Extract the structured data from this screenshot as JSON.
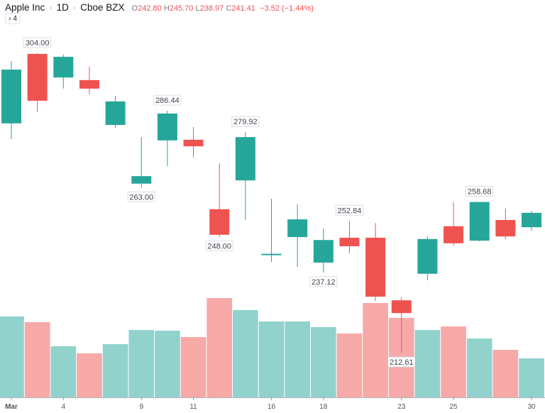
{
  "legend": {
    "symbol": "Apple Inc",
    "interval": "1D",
    "exchange": "Cboe BZX",
    "separator": "·",
    "open_key": "O",
    "open": "242.80",
    "high_key": "H",
    "high": "245.70",
    "low_key": "L",
    "low": "238.97",
    "close_key": "C",
    "close": "241.41",
    "change": "−3.52 (−1.44%)",
    "indicators_toggle_icon": "chevron-right-icon",
    "indicators_count": "4"
  },
  "colors": {
    "up": "#26a69a",
    "down": "#ef5350",
    "volume_up": "#92d2cc",
    "volume_down": "#f7a9a7"
  },
  "chart_data": {
    "type": "candlestick",
    "x_tick_labels": [
      {
        "index": 0,
        "label": "Mar"
      },
      {
        "index": 2,
        "label": "4"
      },
      {
        "index": 5,
        "label": "9"
      },
      {
        "index": 7,
        "label": "11"
      },
      {
        "index": 10,
        "label": "16"
      },
      {
        "index": 12,
        "label": "18"
      },
      {
        "index": 15,
        "label": "23"
      },
      {
        "index": 17,
        "label": "25"
      },
      {
        "index": 20,
        "label": "30"
      }
    ],
    "candles": [
      {
        "o": 282.6,
        "h": 301.6,
        "l": 277.8,
        "c": 299.0,
        "v": 114
      },
      {
        "o": 303.8,
        "h": 304.0,
        "l": 286.0,
        "c": 289.5,
        "v": 106
      },
      {
        "o": 296.6,
        "h": 303.6,
        "l": 293.2,
        "c": 302.9,
        "v": 72
      },
      {
        "o": 295.8,
        "h": 299.9,
        "l": 291.4,
        "c": 293.2,
        "v": 62
      },
      {
        "o": 282.1,
        "h": 291.0,
        "l": 281.3,
        "c": 289.3,
        "v": 75
      },
      {
        "o": 264.2,
        "h": 278.4,
        "l": 263.0,
        "c": 266.5,
        "v": 95
      },
      {
        "o": 277.4,
        "h": 286.44,
        "l": 269.6,
        "c": 285.6,
        "v": 94
      },
      {
        "o": 277.6,
        "h": 281.5,
        "l": 272.2,
        "c": 275.6,
        "v": 85
      },
      {
        "o": 256.4,
        "h": 270.4,
        "l": 248.0,
        "c": 248.6,
        "v": 140
      },
      {
        "o": 265.2,
        "h": 279.92,
        "l": 253.1,
        "c": 278.4,
        "v": 123
      },
      {
        "o": 242.6,
        "h": 259.6,
        "l": 240.3,
        "c": 242.8,
        "v": 107
      },
      {
        "o": 247.9,
        "h": 257.9,
        "l": 238.8,
        "c": 253.3,
        "v": 107
      },
      {
        "o": 240.1,
        "h": 250.5,
        "l": 237.12,
        "c": 247.0,
        "v": 99
      },
      {
        "o": 247.7,
        "h": 252.84,
        "l": 242.9,
        "c": 245.1,
        "v": 90
      },
      {
        "o": 247.7,
        "h": 252.2,
        "l": 228.4,
        "c": 229.7,
        "v": 133
      },
      {
        "o": 228.6,
        "h": 229.5,
        "l": 212.61,
        "c": 224.7,
        "v": 112
      },
      {
        "o": 236.7,
        "h": 248.1,
        "l": 234.7,
        "c": 247.3,
        "v": 95
      },
      {
        "o": 251.2,
        "h": 258.5,
        "l": 245.3,
        "c": 246.0,
        "v": 100
      },
      {
        "o": 246.8,
        "h": 258.68,
        "l": 246.6,
        "c": 258.6,
        "v": 83
      },
      {
        "o": 253.1,
        "h": 256.6,
        "l": 247.3,
        "c": 248.1,
        "v": 67
      },
      {
        "o": 250.9,
        "h": 255.9,
        "l": 249.9,
        "c": 255.3,
        "v": 55
      }
    ],
    "high_labels": [
      {
        "index": 1,
        "text": "304.00"
      },
      {
        "index": 6,
        "text": "286.44"
      },
      {
        "index": 9,
        "text": "279.92"
      },
      {
        "index": 13,
        "text": "252.84"
      },
      {
        "index": 18,
        "text": "258.68"
      }
    ],
    "low_labels": [
      {
        "index": 5,
        "text": "263.00"
      },
      {
        "index": 8,
        "text": "248.00"
      },
      {
        "index": 12,
        "text": "237.12"
      },
      {
        "index": 15,
        "text": "212.61"
      }
    ]
  }
}
